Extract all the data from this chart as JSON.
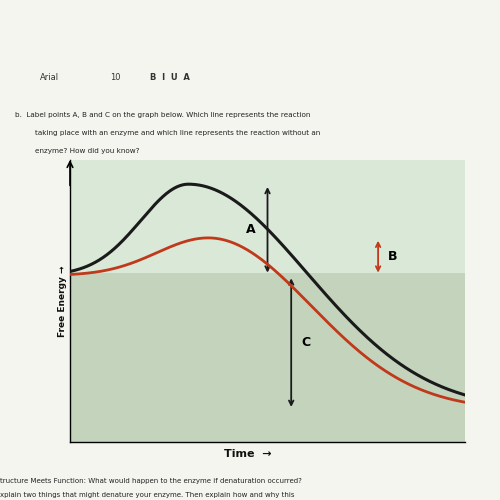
{
  "figsize": [
    5.0,
    5.0
  ],
  "dpi": 100,
  "bg_black": "#111111",
  "bg_white": "#f5f5f0",
  "bg_toolbar": "#e8e8e8",
  "bg_plot_upper": "#d6e4d6",
  "bg_plot_lower": "#c8d8c0",
  "bg_teal": "#7ab8b0",
  "graph_bg_top": "#dae8d8",
  "graph_bg_bot": "#c4d4bc",
  "black_line": "#1a1a1a",
  "red_line": "#c0391b",
  "arrow_black": "#1a1a1a",
  "arrow_red": "#c0391b",
  "label_A": "A",
  "label_B": "B",
  "label_C": "C"
}
